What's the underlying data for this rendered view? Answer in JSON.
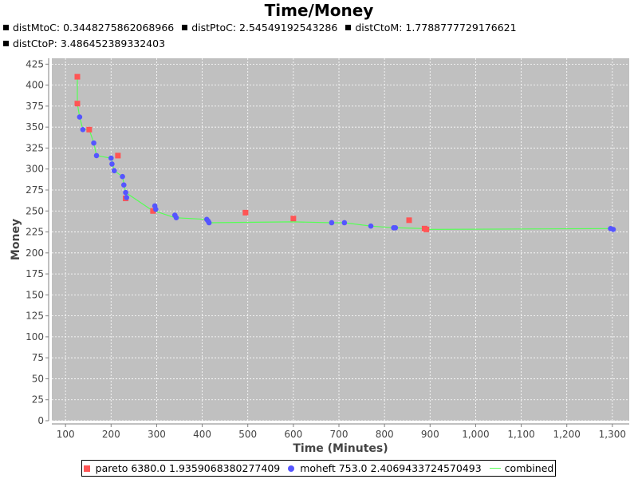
{
  "title": "Time/Money",
  "subtitle_line1": [
    "distMtoC: 0.3448275862068966",
    "distPtoC: 2.54549192543286",
    "distCtoM: 1.7788777729176621"
  ],
  "subtitle_line2": [
    "distCtoP: 3.486452389332403"
  ],
  "colors": {
    "pareto": "#ff5555",
    "moheft": "#5555ff",
    "combined": "#55ff55",
    "plot_bg": "#c0c0c0",
    "grid": "#ffffff"
  },
  "legend": {
    "pareto": "pareto 6380.0 1.9359068380277409",
    "moheft": "moheft 753.0 2.4069433724570493",
    "combined": "combined"
  },
  "chart_data": {
    "type": "scatter",
    "title": "Time/Money",
    "xlabel": "Time (Minutes)",
    "ylabel": "Money",
    "xlim": [
      70,
      1337
    ],
    "ylim": [
      0,
      432
    ],
    "xticks": [
      100,
      200,
      300,
      400,
      500,
      600,
      700,
      800,
      900,
      1000,
      1100,
      1200,
      1300
    ],
    "xtick_labels": [
      "100",
      "200",
      "300",
      "400",
      "500",
      "600",
      "700",
      "800",
      "900",
      "1,000",
      "1,100",
      "1,200",
      "1,300"
    ],
    "yticks": [
      0,
      25,
      50,
      75,
      100,
      125,
      150,
      175,
      200,
      225,
      250,
      275,
      300,
      325,
      350,
      375,
      400,
      425
    ],
    "grid": true,
    "legend_position": "bottom",
    "series": [
      {
        "name": "pareto",
        "marker": "square",
        "x": [
          126,
          126,
          152,
          215,
          232,
          292,
          495,
          600,
          854,
          888,
          892
        ],
        "y": [
          410,
          378,
          347,
          316,
          265,
          250,
          248,
          241,
          239,
          229,
          228
        ]
      },
      {
        "name": "moheft",
        "marker": "circle",
        "x": [
          131,
          138,
          162,
          168,
          200,
          202,
          207,
          225,
          228,
          232,
          234,
          296,
          298,
          340,
          343,
          410,
          413,
          415,
          684,
          712,
          770,
          820,
          824,
          1296,
          1302
        ],
        "y": [
          362,
          347,
          331,
          316,
          313,
          306,
          298,
          291,
          281,
          272,
          266,
          256,
          252,
          245,
          242,
          240,
          238,
          236,
          236,
          236,
          232,
          230,
          230,
          229,
          228
        ]
      },
      {
        "name": "combined",
        "marker": "line",
        "x": [
          126,
          126,
          131,
          138,
          152,
          162,
          168,
          200,
          207,
          225,
          232,
          292,
          296,
          340,
          410,
          415,
          600,
          684,
          712,
          770,
          820,
          824,
          888,
          892,
          1296,
          1302
        ],
        "y": [
          410,
          378,
          362,
          347,
          347,
          331,
          316,
          313,
          298,
          291,
          272,
          250,
          250,
          242,
          240,
          236,
          237,
          236,
          236,
          232,
          230,
          230,
          229,
          228,
          229,
          228
        ]
      }
    ]
  }
}
